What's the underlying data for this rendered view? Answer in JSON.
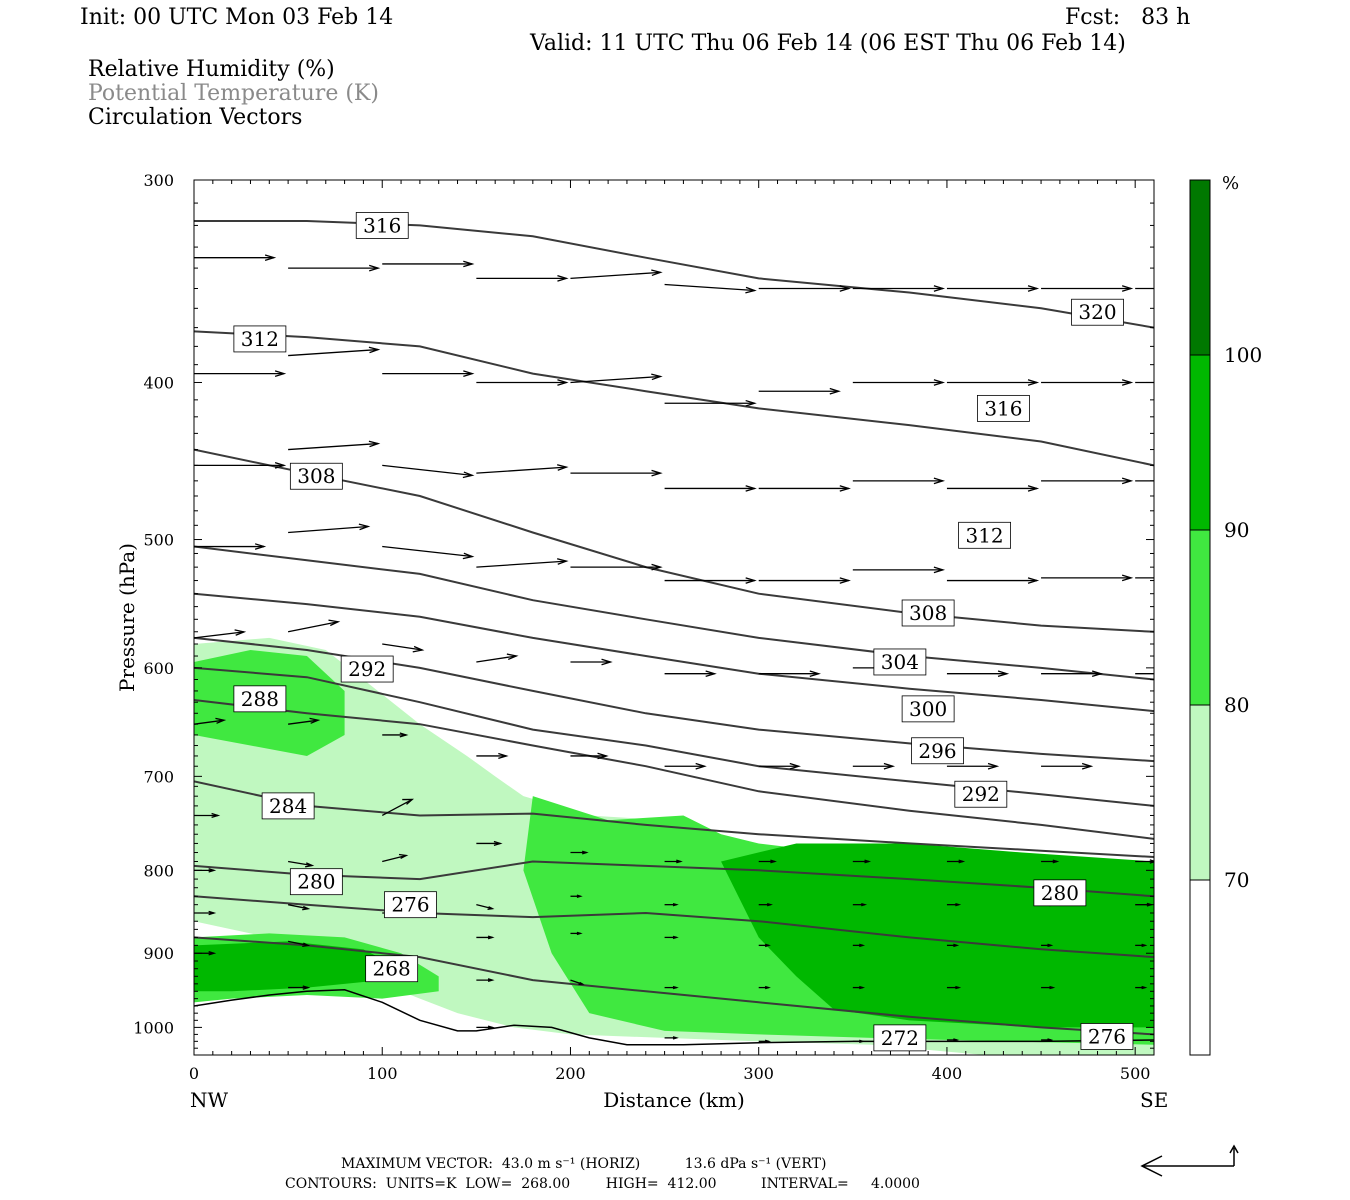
{
  "header": {
    "init": "Init: 00 UTC Mon 03 Feb 14",
    "fcst": "Fcst:   83 h",
    "valid": "Valid: 11 UTC Thu 06 Feb 14 (06 EST Thu 06 Feb 14)",
    "fields": [
      "Relative Humidity (%)",
      "Potential Temperature (K)",
      "Circulation Vectors"
    ]
  },
  "chart_data": {
    "type": "cross-section",
    "xlabel": "Distance (km)",
    "ylabel": "Pressure (hPa)",
    "xlim": [
      0,
      510
    ],
    "ylim": [
      1040,
      300
    ],
    "y_scale": "log-pressure",
    "x_ticks": [
      "0",
      "100",
      "200",
      "300",
      "400",
      "500"
    ],
    "y_ticks": [
      "300",
      "400",
      "500",
      "600",
      "700",
      "800",
      "900",
      "1000"
    ],
    "x_end_labels": {
      "left": "NW",
      "right": "SE"
    },
    "colorbar": {
      "unit": "%",
      "levels": [
        "70",
        "80",
        "90",
        "100"
      ],
      "colors": [
        "#ffffff",
        "#c0f8c0",
        "#40e840",
        "#00b800",
        "#007800"
      ]
    },
    "theta_contours": [
      {
        "label": "316",
        "x": 100,
        "p": [
          318,
          318,
          320,
          325,
          335,
          345,
          352,
          360,
          370
        ]
      },
      {
        "label": "312",
        "x": 35,
        "p": [
          372,
          375,
          380,
          395,
          405,
          415,
          425,
          435,
          450
        ]
      },
      {
        "label": "308",
        "x": 65,
        "p": [
          440,
          455,
          470,
          495,
          520,
          540,
          555,
          565,
          570
        ]
      },
      {
        "label": "304",
        "x": 40,
        "p": [
          505,
          515,
          525,
          545,
          560,
          575,
          590,
          600,
          610
        ]
      },
      {
        "label": "300",
        "x": 10,
        "p": [
          540,
          548,
          558,
          575,
          590,
          605,
          618,
          628,
          638
        ]
      },
      {
        "label": "296",
        "x": 10,
        "p": [
          575,
          585,
          600,
          620,
          640,
          655,
          668,
          678,
          685
        ]
      },
      {
        "label": "292",
        "x": 80,
        "p": [
          600,
          608,
          630,
          655,
          670,
          690,
          705,
          718,
          730
        ]
      },
      {
        "label": "288",
        "x": 35,
        "p": [
          628,
          640,
          650,
          670,
          690,
          715,
          735,
          750,
          765
        ]
      },
      {
        "label": "284",
        "x": 50,
        "p": [
          705,
          730,
          740,
          738,
          750,
          760,
          770,
          778,
          785
        ]
      },
      {
        "label": "280",
        "x": 65,
        "p": [
          795,
          805,
          810,
          790,
          795,
          800,
          810,
          820,
          830
        ]
      },
      {
        "label": "276",
        "x": 115,
        "p": [
          830,
          840,
          850,
          855,
          850,
          860,
          880,
          895,
          905
        ]
      },
      {
        "label": "268",
        "x": 105,
        "p": [
          880,
          890,
          905,
          935,
          950,
          965,
          985,
          1000,
          1010
        ]
      }
    ],
    "theta_labels": [
      {
        "label": "316",
        "x": 100,
        "p": 320
      },
      {
        "label": "312",
        "x": 35,
        "p": 376
      },
      {
        "label": "308",
        "x": 65,
        "p": 457
      },
      {
        "label": "292",
        "x": 92,
        "p": 601
      },
      {
        "label": "288",
        "x": 35,
        "p": 627
      },
      {
        "label": "284",
        "x": 50,
        "p": 730
      },
      {
        "label": "280",
        "x": 65,
        "p": 813
      },
      {
        "label": "276",
        "x": 115,
        "p": 840
      },
      {
        "label": "268",
        "x": 105,
        "p": 920
      },
      {
        "label": "320",
        "x": 480,
        "p": 362
      },
      {
        "label": "316",
        "x": 430,
        "p": 415
      },
      {
        "label": "312",
        "x": 420,
        "p": 497
      },
      {
        "label": "308",
        "x": 390,
        "p": 555
      },
      {
        "label": "304",
        "x": 375,
        "p": 595
      },
      {
        "label": "300",
        "x": 390,
        "p": 636
      },
      {
        "label": "296",
        "x": 395,
        "p": 675
      },
      {
        "label": "292",
        "x": 418,
        "p": 718
      },
      {
        "label": "280",
        "x": 460,
        "p": 826
      },
      {
        "label": "272",
        "x": 375,
        "p": 1015
      },
      {
        "label": "276",
        "x": 485,
        "p": 1013
      }
    ],
    "rh_regions": [
      {
        "level": "80",
        "x": [
          0,
          40,
          70,
          90,
          120,
          145,
          160,
          175,
          210,
          250,
          290,
          340,
          400,
          450,
          510,
          510,
          420,
          360,
          300,
          250,
          200,
          170,
          140,
          120,
          100,
          80,
          60,
          40,
          20,
          0
        ],
        "p": [
          580,
          575,
          585,
          610,
          650,
          680,
          700,
          720,
          740,
          745,
          770,
          780,
          790,
          795,
          790,
          1040,
          1040,
          1025,
          1020,
          1015,
          1010,
          1000,
          980,
          960,
          940,
          920,
          900,
          880,
          870,
          860
        ]
      },
      {
        "level": "90",
        "x": [
          180,
          220,
          260,
          280,
          300,
          340,
          400,
          460,
          510,
          510,
          430,
          360,
          300,
          250,
          210,
          190,
          175
        ],
        "p": [
          720,
          745,
          740,
          760,
          770,
          780,
          790,
          800,
          800,
          1025,
          1020,
          1015,
          1010,
          1005,
          980,
          900,
          800
        ]
      },
      {
        "level": "100",
        "x": [
          280,
          320,
          380,
          440,
          510,
          510,
          450,
          380,
          340,
          320,
          300
        ],
        "p": [
          790,
          770,
          770,
          780,
          790,
          1000,
          1000,
          990,
          975,
          930,
          880
        ]
      },
      {
        "level": "90",
        "x": [
          0,
          30,
          60,
          80,
          80,
          60,
          30,
          0
        ],
        "p": [
          595,
          585,
          590,
          620,
          660,
          680,
          670,
          660
        ]
      },
      {
        "level": "90",
        "x": [
          0,
          40,
          80,
          110,
          130,
          130,
          100,
          60,
          20,
          0
        ],
        "p": [
          880,
          875,
          880,
          900,
          930,
          950,
          960,
          955,
          960,
          965
        ]
      },
      {
        "level": "100",
        "x": [
          0,
          50,
          90,
          110,
          100,
          60,
          20,
          0
        ],
        "p": [
          890,
          885,
          895,
          920,
          935,
          945,
          950,
          950
        ]
      }
    ],
    "vectors": [
      {
        "x": 0,
        "p": 335,
        "u": 40,
        "w": 0
      },
      {
        "x": 50,
        "p": 340,
        "u": 45,
        "w": 0
      },
      {
        "x": 100,
        "p": 338,
        "u": 45,
        "w": 0
      },
      {
        "x": 150,
        "p": 345,
        "u": 45,
        "w": 0
      },
      {
        "x": 200,
        "p": 345,
        "u": 45,
        "w": 3
      },
      {
        "x": 250,
        "p": 348,
        "u": 45,
        "w": -3
      },
      {
        "x": 300,
        "p": 350,
        "u": 45,
        "w": 0
      },
      {
        "x": 350,
        "p": 350,
        "u": 45,
        "w": 0
      },
      {
        "x": 400,
        "p": 350,
        "u": 45,
        "w": 0
      },
      {
        "x": 450,
        "p": 350,
        "u": 45,
        "w": 0
      },
      {
        "x": 500,
        "p": 350,
        "u": 15,
        "w": 0
      },
      {
        "x": 0,
        "p": 395,
        "u": 45,
        "w": 0
      },
      {
        "x": 50,
        "p": 385,
        "u": 45,
        "w": 3
      },
      {
        "x": 100,
        "p": 395,
        "u": 45,
        "w": 0
      },
      {
        "x": 150,
        "p": 400,
        "u": 45,
        "w": 0
      },
      {
        "x": 200,
        "p": 400,
        "u": 45,
        "w": 3
      },
      {
        "x": 250,
        "p": 412,
        "u": 45,
        "w": 0
      },
      {
        "x": 300,
        "p": 405,
        "u": 40,
        "w": 0
      },
      {
        "x": 350,
        "p": 400,
        "u": 45,
        "w": 0
      },
      {
        "x": 400,
        "p": 400,
        "u": 45,
        "w": 0
      },
      {
        "x": 450,
        "p": 400,
        "u": 45,
        "w": 0
      },
      {
        "x": 500,
        "p": 400,
        "u": 15,
        "w": 0
      },
      {
        "x": 0,
        "p": 450,
        "u": 45,
        "w": 0
      },
      {
        "x": 50,
        "p": 440,
        "u": 45,
        "w": 3
      },
      {
        "x": 100,
        "p": 450,
        "u": 45,
        "w": -5
      },
      {
        "x": 150,
        "p": 455,
        "u": 45,
        "w": 3
      },
      {
        "x": 200,
        "p": 455,
        "u": 45,
        "w": 0
      },
      {
        "x": 250,
        "p": 465,
        "u": 45,
        "w": 0
      },
      {
        "x": 300,
        "p": 465,
        "u": 45,
        "w": 0
      },
      {
        "x": 350,
        "p": 460,
        "u": 45,
        "w": 0
      },
      {
        "x": 400,
        "p": 465,
        "u": 45,
        "w": 0
      },
      {
        "x": 450,
        "p": 460,
        "u": 45,
        "w": 0
      },
      {
        "x": 500,
        "p": 460,
        "u": 15,
        "w": 0
      },
      {
        "x": 0,
        "p": 505,
        "u": 35,
        "w": 0
      },
      {
        "x": 50,
        "p": 495,
        "u": 40,
        "w": 3
      },
      {
        "x": 100,
        "p": 505,
        "u": 45,
        "w": -5
      },
      {
        "x": 150,
        "p": 520,
        "u": 45,
        "w": 3
      },
      {
        "x": 200,
        "p": 520,
        "u": 45,
        "w": 0
      },
      {
        "x": 250,
        "p": 530,
        "u": 45,
        "w": 0
      },
      {
        "x": 300,
        "p": 530,
        "u": 45,
        "w": 0
      },
      {
        "x": 350,
        "p": 522,
        "u": 45,
        "w": 0
      },
      {
        "x": 400,
        "p": 530,
        "u": 45,
        "w": 0
      },
      {
        "x": 450,
        "p": 528,
        "u": 45,
        "w": 0
      },
      {
        "x": 500,
        "p": 528,
        "u": 15,
        "w": 0
      },
      {
        "x": 0,
        "p": 575,
        "u": 25,
        "w": 3
      },
      {
        "x": 50,
        "p": 570,
        "u": 25,
        "w": 5
      },
      {
        "x": 100,
        "p": 580,
        "u": 20,
        "w": -3
      },
      {
        "x": 150,
        "p": 595,
        "u": 20,
        "w": 3
      },
      {
        "x": 200,
        "p": 595,
        "u": 20,
        "w": 0
      },
      {
        "x": 250,
        "p": 605,
        "u": 25,
        "w": 0
      },
      {
        "x": 300,
        "p": 605,
        "u": 30,
        "w": 0
      },
      {
        "x": 350,
        "p": 600,
        "u": 30,
        "w": 0
      },
      {
        "x": 400,
        "p": 605,
        "u": 30,
        "w": 0
      },
      {
        "x": 450,
        "p": 605,
        "u": 30,
        "w": 0
      },
      {
        "x": 500,
        "p": 605,
        "u": 15,
        "w": 0
      },
      {
        "x": 0,
        "p": 650,
        "u": 15,
        "w": 2
      },
      {
        "x": 50,
        "p": 650,
        "u": 15,
        "w": 2
      },
      {
        "x": 100,
        "p": 660,
        "u": 12,
        "w": 0
      },
      {
        "x": 150,
        "p": 680,
        "u": 15,
        "w": 0
      },
      {
        "x": 200,
        "p": 680,
        "u": 18,
        "w": 0
      },
      {
        "x": 250,
        "p": 690,
        "u": 20,
        "w": 0
      },
      {
        "x": 300,
        "p": 690,
        "u": 20,
        "w": 0
      },
      {
        "x": 350,
        "p": 690,
        "u": 20,
        "w": 0
      },
      {
        "x": 400,
        "p": 690,
        "u": 25,
        "w": 0
      },
      {
        "x": 450,
        "p": 690,
        "u": 25,
        "w": 0
      },
      {
        "x": 0,
        "p": 740,
        "u": 12,
        "w": 0
      },
      {
        "x": 100,
        "p": 740,
        "u": 15,
        "w": 8
      },
      {
        "x": 150,
        "p": 770,
        "u": 12,
        "w": 0
      },
      {
        "x": 200,
        "p": 780,
        "u": 8,
        "w": 0
      },
      {
        "x": 250,
        "p": 790,
        "u": 8,
        "w": 0
      },
      {
        "x": 300,
        "p": 790,
        "u": 8,
        "w": 0
      },
      {
        "x": 350,
        "p": 790,
        "u": 8,
        "w": 0
      },
      {
        "x": 400,
        "p": 790,
        "u": 8,
        "w": 0
      },
      {
        "x": 450,
        "p": 790,
        "u": 8,
        "w": 0
      },
      {
        "x": 500,
        "p": 790,
        "u": 10,
        "w": 0
      },
      {
        "x": 0,
        "p": 800,
        "u": 10,
        "w": 0
      },
      {
        "x": 50,
        "p": 790,
        "u": 12,
        "w": -2
      },
      {
        "x": 100,
        "p": 790,
        "u": 12,
        "w": 3
      },
      {
        "x": 150,
        "p": 840,
        "u": 8,
        "w": -2
      },
      {
        "x": 200,
        "p": 830,
        "u": 5,
        "w": 0
      },
      {
        "x": 250,
        "p": 840,
        "u": 6,
        "w": 0
      },
      {
        "x": 300,
        "p": 840,
        "u": 6,
        "w": 0
      },
      {
        "x": 350,
        "p": 840,
        "u": 6,
        "w": 0
      },
      {
        "x": 400,
        "p": 840,
        "u": 6,
        "w": 0
      },
      {
        "x": 450,
        "p": 840,
        "u": 6,
        "w": 0
      },
      {
        "x": 500,
        "p": 840,
        "u": 8,
        "w": 0
      },
      {
        "x": 0,
        "p": 850,
        "u": 10,
        "w": 0
      },
      {
        "x": 50,
        "p": 840,
        "u": 10,
        "w": -2
      },
      {
        "x": 100,
        "p": 850,
        "u": 10,
        "w": 0
      },
      {
        "x": 150,
        "p": 880,
        "u": 8,
        "w": 0
      },
      {
        "x": 200,
        "p": 875,
        "u": 5,
        "w": 0
      },
      {
        "x": 250,
        "p": 880,
        "u": 6,
        "w": 0
      },
      {
        "x": 300,
        "p": 890,
        "u": 5,
        "w": 0
      },
      {
        "x": 350,
        "p": 890,
        "u": 5,
        "w": 0
      },
      {
        "x": 400,
        "p": 890,
        "u": 5,
        "w": 0
      },
      {
        "x": 450,
        "p": 890,
        "u": 5,
        "w": 0
      },
      {
        "x": 500,
        "p": 890,
        "u": 5,
        "w": 0
      },
      {
        "x": 0,
        "p": 900,
        "u": 10,
        "w": 0
      },
      {
        "x": 50,
        "p": 885,
        "u": 10,
        "w": -2
      },
      {
        "x": 100,
        "p": 905,
        "u": 8,
        "w": -2
      },
      {
        "x": 150,
        "p": 935,
        "u": 8,
        "w": 0
      },
      {
        "x": 200,
        "p": 935,
        "u": 6,
        "w": -2
      },
      {
        "x": 250,
        "p": 945,
        "u": 6,
        "w": 0
      },
      {
        "x": 300,
        "p": 945,
        "u": 5,
        "w": 0
      },
      {
        "x": 350,
        "p": 945,
        "u": 5,
        "w": 0
      },
      {
        "x": 400,
        "p": 945,
        "u": 6,
        "w": 0
      },
      {
        "x": 450,
        "p": 945,
        "u": 6,
        "w": 0
      },
      {
        "x": 500,
        "p": 945,
        "u": 5,
        "w": 0
      },
      {
        "x": 50,
        "p": 945,
        "u": 10,
        "w": 0
      },
      {
        "x": 150,
        "p": 1000,
        "u": 8,
        "w": 0
      },
      {
        "x": 250,
        "p": 1015,
        "u": 6,
        "w": 0
      },
      {
        "x": 300,
        "p": 1020,
        "u": 5,
        "w": 0
      },
      {
        "x": 350,
        "p": 1020,
        "u": 5,
        "w": 0
      },
      {
        "x": 400,
        "p": 1018,
        "u": 5,
        "w": 0
      },
      {
        "x": 450,
        "p": 1018,
        "u": 5,
        "w": 0
      }
    ],
    "terrain": {
      "x": [
        0,
        20,
        40,
        60,
        80,
        100,
        120,
        140,
        150,
        170,
        190,
        210,
        230,
        260,
        300,
        350,
        400,
        450,
        510
      ],
      "p": [
        970,
        962,
        955,
        950,
        948,
        965,
        990,
        1005,
        1005,
        997,
        1000,
        1015,
        1025,
        1025,
        1022,
        1020,
        1020,
        1020,
        1018
      ]
    }
  },
  "footer": {
    "line1": "MAXIMUM VECTOR:  43.0 m s⁻¹ (HORIZ)          13.6 dPa s⁻¹ (VERT)",
    "line2": "CONTOURS:  UNITS=K  LOW=  268.00        HIGH=  412.00          INTERVAL=     4.0000"
  }
}
